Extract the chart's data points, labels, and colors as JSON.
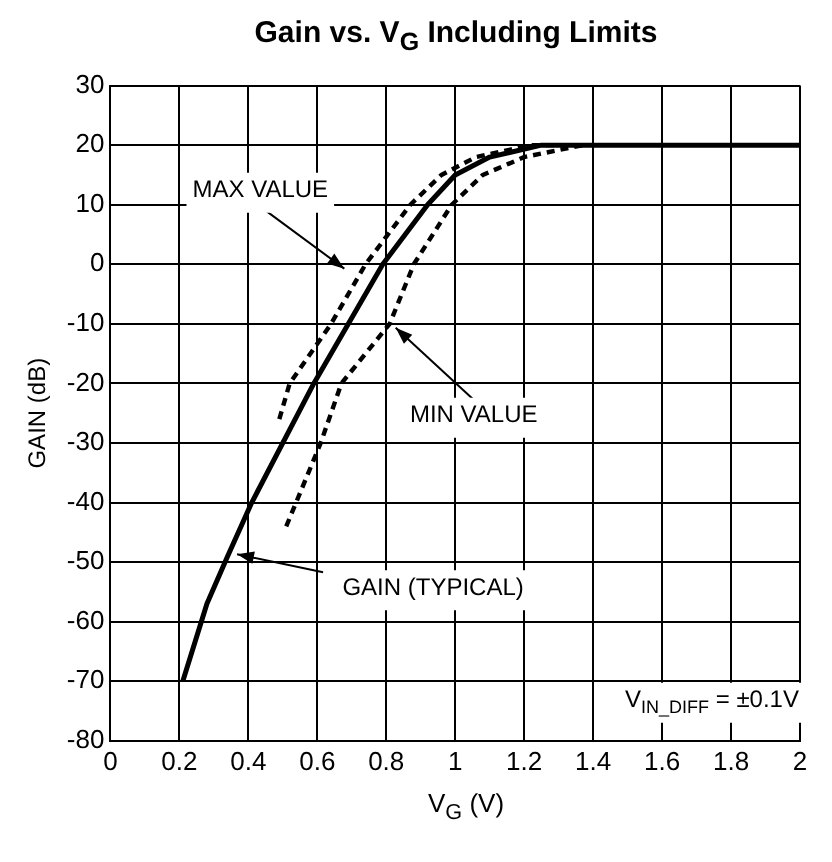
{
  "chart_data": {
    "type": "line",
    "title": "Gain vs. V$_{G}$ Including Limits",
    "xlabel": "V$_{G}$ (V)",
    "ylabel": "GAIN (dB)",
    "xlim": [
      0,
      2
    ],
    "xticks": [
      0,
      0.2,
      0.4,
      0.6,
      0.8,
      1,
      1.2,
      1.4,
      1.6,
      1.8,
      2
    ],
    "ylim": [
      -80,
      30
    ],
    "yticks": [
      -80,
      -70,
      -60,
      -50,
      -40,
      -30,
      -20,
      -10,
      0,
      10,
      20,
      30
    ],
    "grid": true,
    "legend": false,
    "marker": "none",
    "series": [
      {
        "color": "#000000",
        "line_style": "solid",
        "x": [
          0.21,
          0.28,
          0.34,
          0.41,
          0.59,
          0.79,
          0.92,
          1.0,
          1.1,
          1.25,
          1.4,
          2.0
        ],
        "values": [
          -70,
          -57,
          -49,
          -40,
          -20,
          0,
          10,
          15,
          18,
          20,
          20,
          20
        ]
      },
      {
        "color": "#000000",
        "line_style": "dashed",
        "x": [
          0.49,
          0.52,
          0.64,
          0.74,
          0.87,
          0.96,
          1.06,
          1.22,
          1.35
        ],
        "values": [
          -26,
          -20,
          -10,
          0,
          10,
          15,
          18,
          20,
          20
        ]
      },
      {
        "color": "#000000",
        "line_style": "dashed",
        "x": [
          0.51,
          0.61,
          0.67,
          0.81,
          0.88,
          0.99,
          1.08,
          1.2,
          1.37
        ],
        "values": [
          -44,
          -30,
          -20,
          -10,
          0,
          10,
          15,
          18,
          20
        ]
      }
    ],
    "annotations": [
      {
        "text": "MAX VALUE",
        "x": 0.69,
        "y": -1.4
      },
      {
        "text": "MIN VALUE",
        "x": 0.81,
        "y": -10
      },
      {
        "text": "GAIN (TYPICAL)",
        "x": 0.35,
        "y": -48
      },
      "V$_{IN_DIFF}$ = ±0.1V"
    ]
  }
}
